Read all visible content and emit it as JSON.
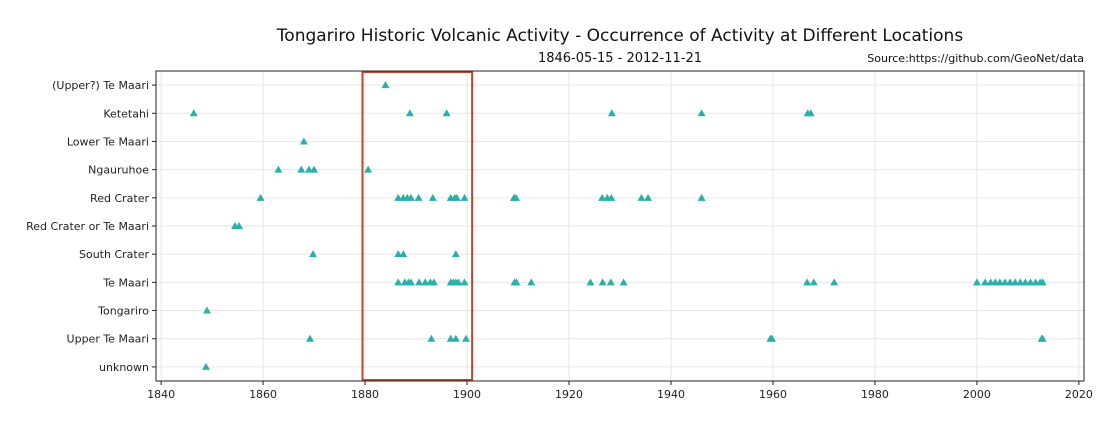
{
  "chart_data": {
    "type": "scatter",
    "title": "Tongariro Historic Volcanic Activity - Occurrence of Activity at Different Locations",
    "subtitle": "1846-05-15 - 2012-11-21",
    "source": "Source:https://github.com/GeoNet/data",
    "xlabel": "",
    "ylabel": "",
    "xlim": [
      1839,
      2021
    ],
    "x_ticks": [
      1840,
      1860,
      1880,
      1900,
      1920,
      1940,
      1960,
      1980,
      2000,
      2020
    ],
    "categories": [
      "(Upper?) Te Maari",
      "Ketetahi",
      "Lower Te Maari",
      "Ngauruhoe",
      "Red Crater",
      "Red Crater or Te Maari",
      "South Crater",
      "Te Maari",
      "Tongariro",
      "Upper Te Maari",
      "unknown"
    ],
    "marker": "triangle",
    "marker_color": "#2ab0a8",
    "grid": true,
    "highlight_box": {
      "x_range": [
        1879.5,
        1901
      ],
      "color": "#c0452a"
    },
    "points": [
      {
        "location": "(Upper?) Te Maari",
        "years": [
          1884
        ]
      },
      {
        "location": "Ketetahi",
        "years": [
          1846.4,
          1888.8,
          1896,
          1928.4,
          1946,
          1966.8,
          1967.4
        ]
      },
      {
        "location": "Lower Te Maari",
        "years": [
          1868
        ]
      },
      {
        "location": "Ngauruhoe",
        "years": [
          1863,
          1867.5,
          1869,
          1870,
          1880.6
        ]
      },
      {
        "location": "Red Crater",
        "years": [
          1859.5,
          1886.5,
          1887.5,
          1888.3,
          1889,
          1890.5,
          1893.3,
          1896.8,
          1897.6,
          1898,
          1899.5,
          1909.2,
          1909.6,
          1926.5,
          1927.5,
          1928.3,
          1934.2,
          1935.5,
          1946
        ]
      },
      {
        "location": "Red Crater or Te Maari",
        "years": [
          1854.5,
          1855.3
        ]
      },
      {
        "location": "South Crater",
        "years": [
          1869.8,
          1886.5,
          1887.5,
          1897.8
        ]
      },
      {
        "location": "Te Maari",
        "years": [
          1886.5,
          1887.8,
          1888.5,
          1889,
          1890.6,
          1891.8,
          1892.8,
          1893.5,
          1896.8,
          1897.3,
          1897.8,
          1898.3,
          1899.5,
          1909.3,
          1909.7,
          1912.6,
          1924.2,
          1926.6,
          1928.2,
          1930.7,
          1966.7,
          1968,
          1972,
          2000,
          2001.6,
          2002.7,
          2003.6,
          2004.5,
          2005.5,
          2006.5,
          2007.5,
          2008.5,
          2009.5,
          2010.5,
          2011.5,
          2012.4,
          2012.9
        ]
      },
      {
        "location": "Tongariro",
        "years": [
          1849
        ]
      },
      {
        "location": "Upper Te Maari",
        "years": [
          1869.2,
          1893,
          1896.8,
          1897.8,
          1899.8,
          1959.5,
          1959.8,
          2012.7,
          2012.9
        ]
      },
      {
        "location": "unknown",
        "years": [
          1848.8
        ]
      }
    ]
  }
}
